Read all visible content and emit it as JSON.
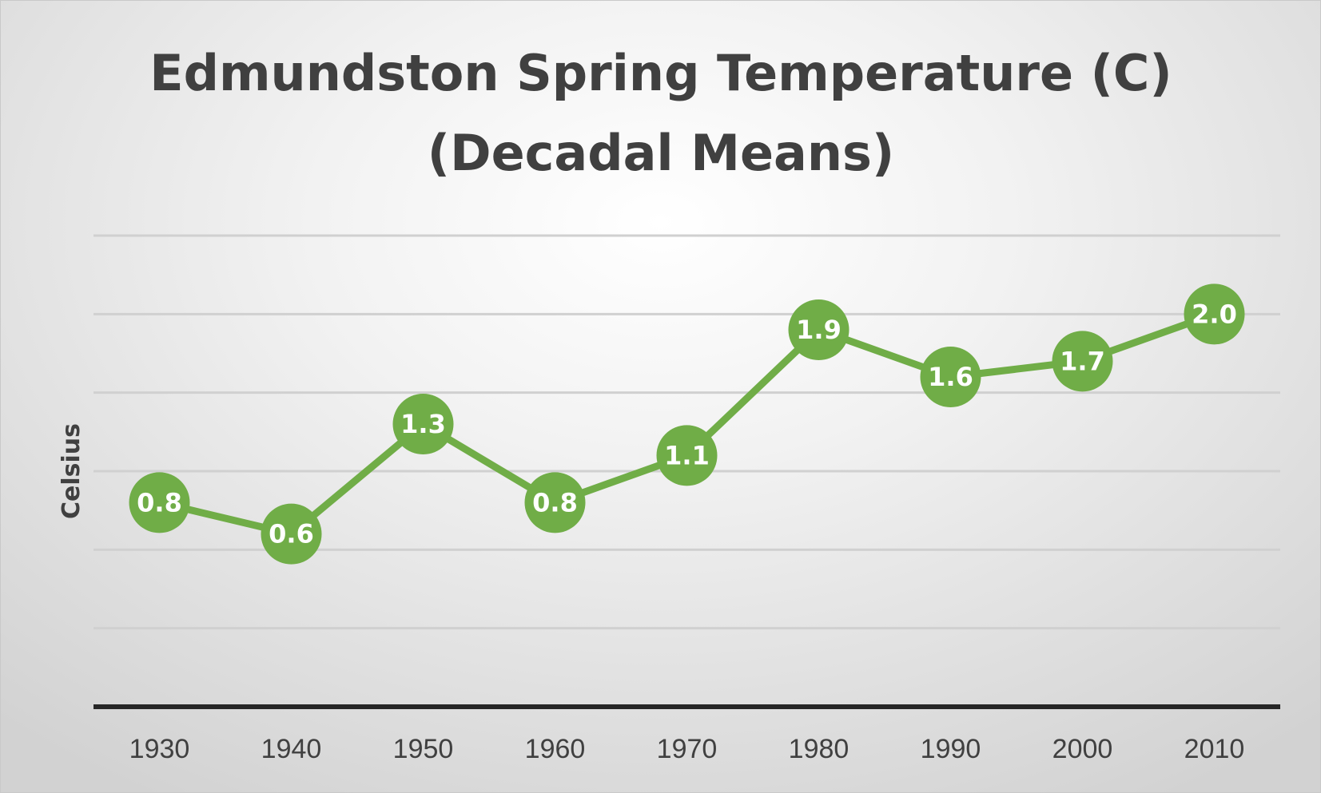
{
  "chart_data": {
    "type": "line",
    "title": [
      "Edmundston Spring Temperature (C)",
      "(Decadal Means)"
    ],
    "ylabel": "Celsius",
    "xlabel": "",
    "categories": [
      "1930",
      "1940",
      "1950",
      "1960",
      "1970",
      "1980",
      "1990",
      "2000",
      "2010"
    ],
    "series": [
      {
        "values": [
          0.8,
          0.6,
          1.3,
          0.8,
          1.1,
          1.9,
          1.6,
          1.7,
          2.0
        ],
        "labels": [
          "0.8",
          "0.6",
          "1.3",
          "0.8",
          "1.1",
          "1.9",
          "1.6",
          "1.7",
          "2.0"
        ],
        "color": "#70ad47"
      }
    ],
    "ylim": [
      -0.5,
      2.5
    ],
    "y_gridlines": [
      0,
      0.5,
      1.0,
      1.5,
      2.0,
      2.5
    ],
    "y_tick_labels_shown": false,
    "grid": true,
    "legend": "none",
    "colors": {
      "gridline": "#d0d0d0",
      "baseline": "#262626",
      "text": "#404040",
      "marker_label": "#ffffff"
    }
  }
}
